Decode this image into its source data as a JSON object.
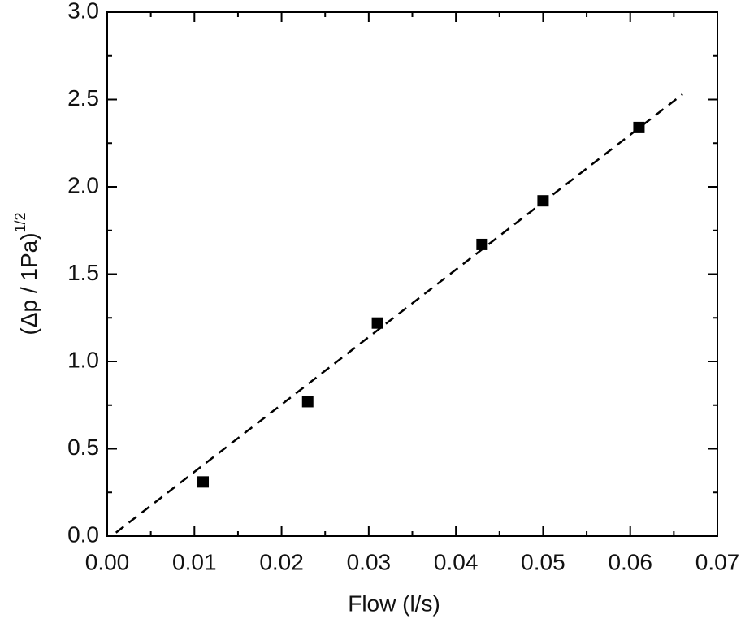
{
  "chart_data": {
    "type": "scatter",
    "xlabel": "Flow (l/s)",
    "ylabel": "(Δp / 1Pa)",
    "ylabel_superscript": "1/2",
    "series": [
      {
        "color": "#000000",
        "marker": "square",
        "x": [
          0.011,
          0.023,
          0.031,
          0.043,
          0.05,
          0.061
        ],
        "values": [
          0.31,
          0.77,
          1.22,
          1.67,
          1.92,
          2.34
        ]
      }
    ],
    "fit": {
      "color": "#000000",
      "style": "dashed",
      "x": [
        0.001,
        0.066
      ],
      "values": [
        0.02,
        2.53
      ]
    },
    "xlim": [
      0,
      0.07
    ],
    "xticks": [
      {
        "value": 0,
        "label": "0.00"
      },
      {
        "value": 0.01,
        "label": "0.01"
      },
      {
        "value": 0.02,
        "label": "0.02"
      },
      {
        "value": 0.03,
        "label": "0.03"
      },
      {
        "value": 0.04,
        "label": "0.04"
      },
      {
        "value": 0.05,
        "label": "0.05"
      },
      {
        "value": 0.06,
        "label": "0.06"
      },
      {
        "value": 0.07,
        "label": "0.07"
      }
    ],
    "ylim": [
      0,
      3
    ],
    "yticks": [
      {
        "value": 0,
        "label": "0.0"
      },
      0.5,
      {
        "value": 1,
        "label": "1.0"
      },
      1.5,
      {
        "value": 2,
        "label": "2.0"
      },
      2.5,
      {
        "value": 3,
        "label": "3.0"
      }
    ]
  }
}
